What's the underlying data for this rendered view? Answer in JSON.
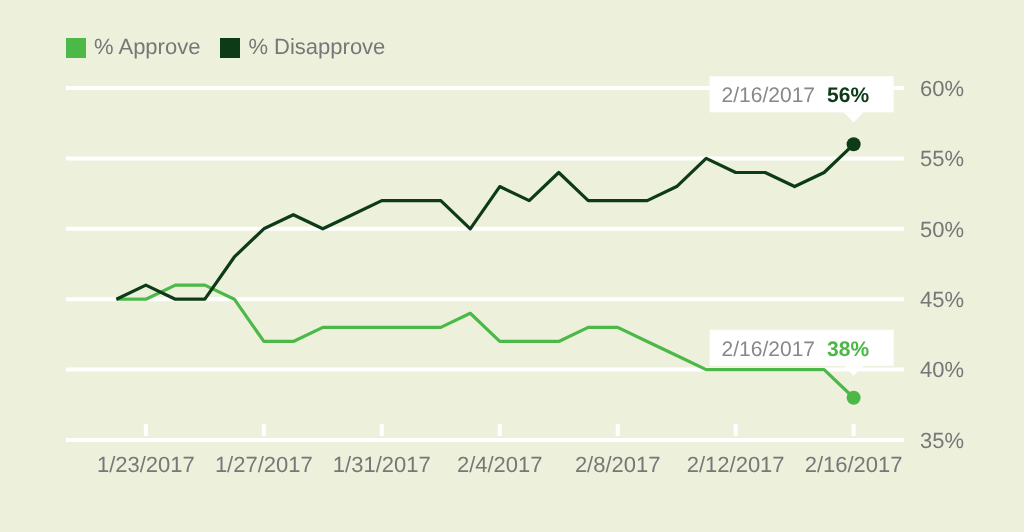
{
  "chart_data": {
    "type": "line",
    "x": [
      "2017-01-22",
      "2017-01-23",
      "2017-01-24",
      "2017-01-25",
      "2017-01-26",
      "2017-01-27",
      "2017-01-28",
      "2017-01-29",
      "2017-01-30",
      "2017-01-31",
      "2017-02-01",
      "2017-02-02",
      "2017-02-03",
      "2017-02-04",
      "2017-02-05",
      "2017-02-06",
      "2017-02-07",
      "2017-02-08",
      "2017-02-09",
      "2017-02-10",
      "2017-02-11",
      "2017-02-12",
      "2017-02-13",
      "2017-02-14",
      "2017-02-15",
      "2017-02-16"
    ],
    "series": [
      {
        "name": "% Approve",
        "color": "#4cb848",
        "values": [
          45,
          45,
          46,
          46,
          45,
          42,
          42,
          43,
          43,
          43,
          43,
          43,
          44,
          42,
          42,
          42,
          43,
          43,
          42,
          41,
          40,
          40,
          40,
          40,
          40,
          38
        ]
      },
      {
        "name": "% Disapprove",
        "color": "#0d3b17",
        "values": [
          45,
          46,
          45,
          45,
          48,
          50,
          51,
          50,
          51,
          52,
          52,
          52,
          50,
          53,
          52,
          54,
          52,
          52,
          52,
          53,
          55,
          54,
          54,
          53,
          54,
          56
        ]
      }
    ],
    "xlim": [
      "2017-01-20T07:00",
      "2017-02-17T17:00"
    ],
    "xticks": [
      {
        "value": "2017-01-23",
        "label": "1/23/2017"
      },
      {
        "value": "2017-01-27",
        "label": "1/27/2017"
      },
      {
        "value": "2017-01-31",
        "label": "1/31/2017"
      },
      {
        "value": "2017-02-04",
        "label": "2/4/2017"
      },
      {
        "value": "2017-02-08",
        "label": "2/8/2017"
      },
      {
        "value": "2017-02-12",
        "label": "2/12/2017"
      },
      {
        "value": "2017-02-16",
        "label": "2/16/2017"
      }
    ],
    "ylim": [
      35,
      60
    ],
    "yticks": [
      {
        "value": 35,
        "label": "35%"
      },
      {
        "value": 40,
        "label": "40%"
      },
      {
        "value": 45,
        "label": "45%"
      },
      {
        "value": 50,
        "label": "50%"
      },
      {
        "value": 55,
        "label": "55%"
      },
      {
        "value": 60,
        "label": "60%"
      }
    ],
    "grid": "y",
    "legend": "top left",
    "annotations": [
      {
        "text": "2/16/2017 56%",
        "x": "2017-02-16",
        "y": 56
      },
      {
        "text": "2/16/2017 38%",
        "x": "2017-02-16",
        "y": 38
      }
    ]
  }
}
